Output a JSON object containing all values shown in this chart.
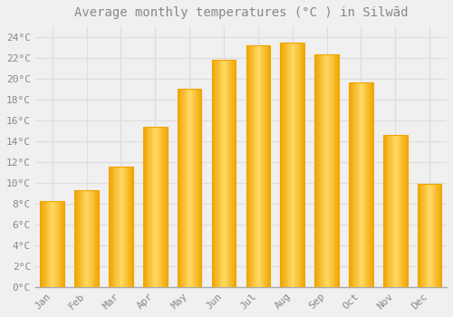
{
  "title": "Average monthly temperatures (°C ) in Silwād",
  "months": [
    "Jan",
    "Feb",
    "Mar",
    "Apr",
    "May",
    "Jun",
    "Jul",
    "Aug",
    "Sep",
    "Oct",
    "Nov",
    "Dec"
  ],
  "values": [
    8.2,
    9.3,
    11.5,
    15.4,
    19.0,
    21.8,
    23.2,
    23.4,
    22.3,
    19.6,
    14.6,
    9.9
  ],
  "bar_color_center": "#FFD966",
  "bar_color_edge": "#F0A500",
  "background_color": "#F0F0F0",
  "grid_color": "#DDDDDD",
  "text_color": "#888888",
  "ylim": [
    0,
    25
  ],
  "yticks": [
    0,
    2,
    4,
    6,
    8,
    10,
    12,
    14,
    16,
    18,
    20,
    22,
    24
  ],
  "title_fontsize": 10,
  "tick_fontsize": 8,
  "figsize": [
    5.0,
    3.5
  ],
  "dpi": 100,
  "bar_width": 0.7
}
